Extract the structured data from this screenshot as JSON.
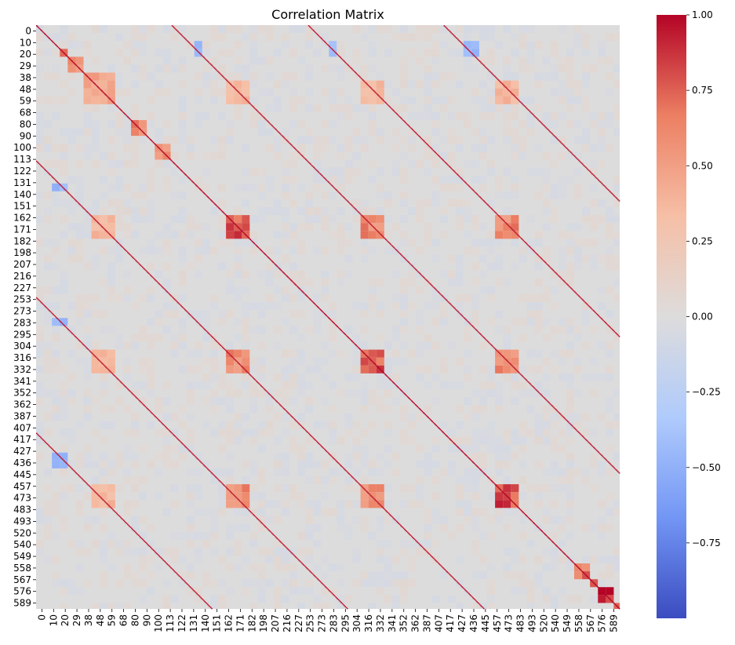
{
  "chart_data": {
    "type": "heatmap",
    "title": "Correlation Matrix",
    "matrix_size": 590,
    "tick_labels": [
      "0",
      "10",
      "20",
      "29",
      "38",
      "48",
      "59",
      "68",
      "80",
      "90",
      "100",
      "113",
      "122",
      "131",
      "140",
      "151",
      "162",
      "171",
      "182",
      "198",
      "207",
      "216",
      "227",
      "253",
      "273",
      "283",
      "295",
      "304",
      "316",
      "332",
      "341",
      "352",
      "362",
      "387",
      "407",
      "417",
      "427",
      "436",
      "445",
      "457",
      "473",
      "483",
      "493",
      "520",
      "540",
      "549",
      "558",
      "567",
      "576",
      "589"
    ],
    "colorbar": {
      "min": -1.0,
      "max": 1.0,
      "ticks": [
        -0.75,
        -0.5,
        -0.25,
        0.0,
        0.25,
        0.5,
        0.75,
        1.0
      ],
      "tick_labels": [
        "−0.75",
        "−0.50",
        "−0.25",
        "0.00",
        "0.25",
        "0.50",
        "0.75",
        "1.00"
      ]
    },
    "colormap": "coolwarm",
    "colormap_stops": [
      "#3b4cc0",
      "#7396f5",
      "#b0cbfc",
      "#dddcdc",
      "#f6bfa6",
      "#ec7f63",
      "#b40426"
    ],
    "diagonal_value": 1.0,
    "background_value": 0.0,
    "diagonal_bands": [
      {
        "offset": 0,
        "value": 1.0
      },
      {
        "offset": 137,
        "value": 0.95
      },
      {
        "offset": 275,
        "value": 0.95
      },
      {
        "offset": 412,
        "value": 0.95
      }
    ],
    "blocks": [
      {
        "rows": [
          27,
          33
        ],
        "cols": [
          27,
          33
        ],
        "value": 0.9
      },
      {
        "rows": [
          34,
          44
        ],
        "cols": [
          34,
          44
        ],
        "value": 0.6
      },
      {
        "rows": [
          45,
          80
        ],
        "cols": [
          45,
          80
        ],
        "value": 0.5
      },
      {
        "rows": [
          95,
          110
        ],
        "cols": [
          95,
          110
        ],
        "value": 0.7
      },
      {
        "rows": [
          118,
          135
        ],
        "cols": [
          118,
          135
        ],
        "value": 0.6
      },
      {
        "rows": [
          195,
          215
        ],
        "cols": [
          195,
          215
        ],
        "value": 0.85
      },
      {
        "rows": [
          330,
          350
        ],
        "cols": [
          330,
          350
        ],
        "value": 0.85
      },
      {
        "rows": [
          468,
          490
        ],
        "cols": [
          468,
          490
        ],
        "value": 0.85
      },
      {
        "rows": [
          195,
          215
        ],
        "cols": [
          330,
          350
        ],
        "value": 0.65
      },
      {
        "rows": [
          195,
          215
        ],
        "cols": [
          468,
          490
        ],
        "value": 0.65
      },
      {
        "rows": [
          330,
          350
        ],
        "cols": [
          468,
          490
        ],
        "value": 0.65
      },
      {
        "rows": [
          330,
          350
        ],
        "cols": [
          195,
          215
        ],
        "value": 0.65
      },
      {
        "rows": [
          468,
          490
        ],
        "cols": [
          195,
          215
        ],
        "value": 0.65
      },
      {
        "rows": [
          468,
          490
        ],
        "cols": [
          330,
          350
        ],
        "value": 0.65
      },
      {
        "rows": [
          55,
          80
        ],
        "cols": [
          195,
          215
        ],
        "value": 0.4
      },
      {
        "rows": [
          55,
          80
        ],
        "cols": [
          330,
          350
        ],
        "value": 0.4
      },
      {
        "rows": [
          55,
          80
        ],
        "cols": [
          468,
          490
        ],
        "value": 0.4
      },
      {
        "rows": [
          195,
          215
        ],
        "cols": [
          55,
          80
        ],
        "value": 0.4
      },
      {
        "rows": [
          330,
          350
        ],
        "cols": [
          55,
          80
        ],
        "value": 0.4
      },
      {
        "rows": [
          468,
          490
        ],
        "cols": [
          55,
          80
        ],
        "value": 0.4
      },
      {
        "rows": [
          15,
          28
        ],
        "cols": [
          160,
          170
        ],
        "value": -0.5
      },
      {
        "rows": [
          15,
          28
        ],
        "cols": [
          295,
          305
        ],
        "value": -0.5
      },
      {
        "rows": [
          15,
          28
        ],
        "cols": [
          435,
          445
        ],
        "value": -0.5
      },
      {
        "rows": [
          160,
          170
        ],
        "cols": [
          15,
          28
        ],
        "value": -0.5
      },
      {
        "rows": [
          295,
          305
        ],
        "cols": [
          15,
          28
        ],
        "value": -0.5
      },
      {
        "rows": [
          435,
          445
        ],
        "cols": [
          15,
          28
        ],
        "value": -0.5
      },
      {
        "rows": [
          542,
          560
        ],
        "cols": [
          542,
          560
        ],
        "value": 0.75
      },
      {
        "rows": [
          562,
          570
        ],
        "cols": [
          562,
          570
        ],
        "value": 0.9
      },
      {
        "rows": [
          572,
          582
        ],
        "cols": [
          572,
          582
        ],
        "value": 1.0
      },
      {
        "rows": [
          583,
          589
        ],
        "cols": [
          583,
          589
        ],
        "value": 0.9
      }
    ]
  }
}
